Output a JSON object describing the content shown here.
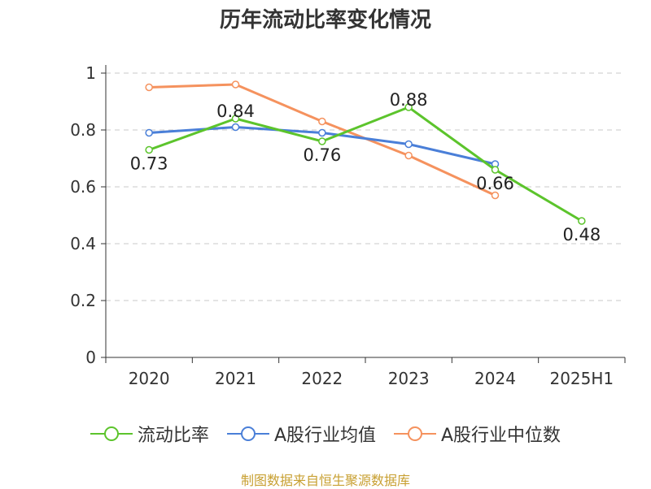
{
  "colors": {
    "current_ratio": "#5cc42c",
    "industry_mean": "#4a7fd8",
    "industry_median": "#f5925e",
    "axis": "#333333",
    "grid": "#c8c8c8",
    "source": "#c8a032"
  },
  "chart_data": {
    "type": "line",
    "title": "历年流动比率变化情况",
    "xlabel": "",
    "ylabel": "",
    "categories": [
      "2020",
      "2021",
      "2022",
      "2023",
      "2024",
      "2025H1"
    ],
    "ylim": [
      0,
      1
    ],
    "yticks": [
      "0",
      "0.2",
      "0.4",
      "0.6",
      "0.8",
      "1"
    ],
    "ytick_values": [
      0,
      0.2,
      0.4,
      0.6,
      0.8,
      1
    ],
    "grid": true,
    "legend_position": "bottom",
    "series": [
      {
        "key": "current_ratio",
        "name": "流动比率",
        "values": [
          0.73,
          0.84,
          0.76,
          0.88,
          0.66,
          0.48
        ],
        "labels": [
          "0.73",
          "0.84",
          "0.76",
          "0.88",
          "0.66",
          "0.48"
        ]
      },
      {
        "key": "industry_mean",
        "name": "A股行业均值",
        "values": [
          0.79,
          0.81,
          0.79,
          0.75,
          0.68,
          null
        ]
      },
      {
        "key": "industry_median",
        "name": "A股行业中位数",
        "values": [
          0.95,
          0.96,
          0.83,
          0.71,
          0.57,
          null
        ]
      }
    ]
  },
  "source_text": "制图数据来自恒生聚源数据库"
}
